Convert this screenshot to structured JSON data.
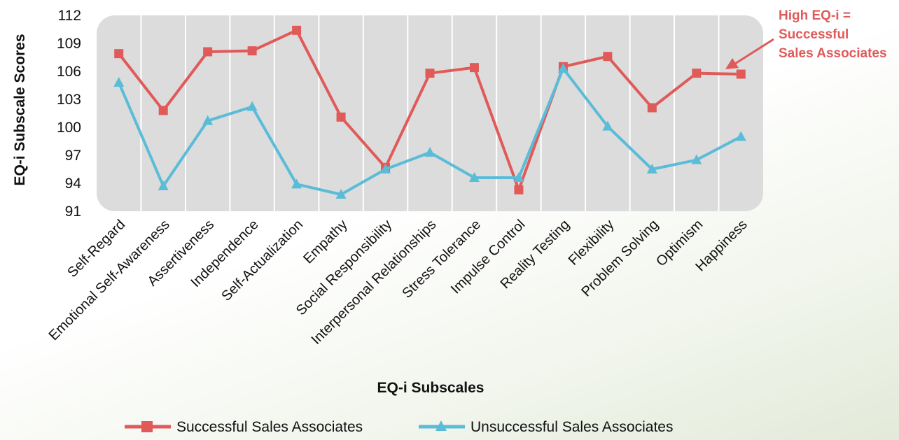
{
  "chart_data": {
    "type": "line",
    "ylabel": "EQ-i Subscale Scores",
    "xlabel": "EQ-i Subscales",
    "ylim": [
      91,
      112
    ],
    "yticks": [
      91,
      94,
      97,
      100,
      103,
      106,
      109,
      112
    ],
    "grid": "vertical",
    "categories": [
      "Self-Regard",
      "Emotional Self-Awareness",
      "Assertiveness",
      "Independence",
      "Self-Actualization",
      "Empathy",
      "Social Responsibility",
      "Interpersonal Relationships",
      "Stress Tolerance",
      "Impulse Control",
      "Reality Testing",
      "Flexibility",
      "Problem Solving",
      "Optimism",
      "Happiness"
    ],
    "series": [
      {
        "name": "Successful Sales Associates",
        "color": "#e05a5a",
        "marker": "square",
        "values": [
          107.9,
          101.8,
          108.1,
          108.2,
          110.4,
          101.1,
          95.7,
          105.8,
          106.4,
          93.3,
          106.5,
          107.6,
          102.1,
          105.8,
          105.7
        ]
      },
      {
        "name": "Unsuccessful Sales Associates",
        "color": "#5bbcd8",
        "marker": "triangle",
        "values": [
          104.8,
          93.7,
          100.7,
          102.2,
          93.9,
          92.8,
          95.5,
          97.3,
          94.6,
          94.6,
          106.3,
          100.1,
          95.5,
          96.5,
          99.0
        ]
      }
    ],
    "annotation": {
      "lines": [
        "High EQ-i =",
        "Successful",
        "Sales Associates"
      ],
      "color": "#e05a5a"
    },
    "legend_position": "bottom"
  }
}
